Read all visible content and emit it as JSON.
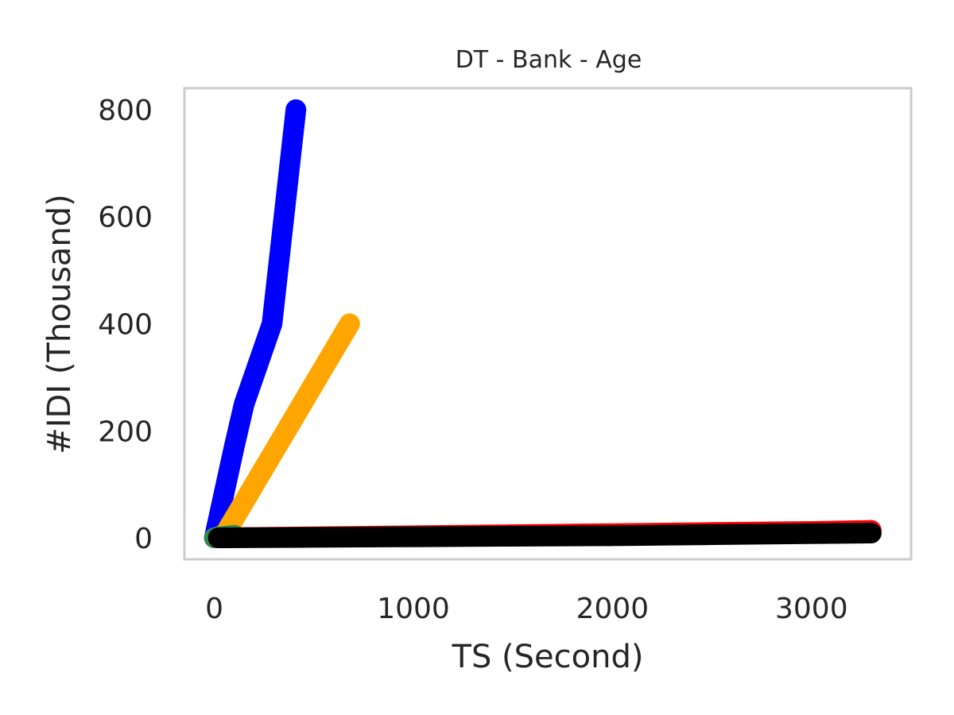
{
  "chart_data": {
    "type": "line",
    "title": "DT - Bank - Age",
    "xlabel": "TS (Second)",
    "ylabel": "#IDI (Thousand)",
    "xlim": [
      -150,
      3500
    ],
    "ylim": [
      -40,
      840
    ],
    "xticks": [
      0,
      1000,
      2000,
      3000
    ],
    "yticks": [
      0,
      200,
      400,
      600,
      800
    ],
    "grid": false,
    "series": [
      {
        "color": "#ff0000",
        "x": [
          0,
          500,
          1000,
          1500,
          2000,
          2500,
          3000,
          3300
        ],
        "y": [
          0,
          2,
          4,
          6,
          8,
          10,
          12,
          14
        ]
      },
      {
        "color": "#0000ff",
        "x": [
          0,
          100,
          150,
          290,
          350,
          410
        ],
        "y": [
          0,
          170,
          250,
          400,
          600,
          800
        ]
      },
      {
        "color": "#ffa500",
        "x": [
          0,
          50,
          680
        ],
        "y": [
          0,
          5,
          400
        ]
      },
      {
        "color": "#2e8b57",
        "x": [
          0,
          50,
          100
        ],
        "y": [
          0,
          3,
          5
        ]
      },
      {
        "color": "#000000",
        "x": [
          20,
          500,
          1000,
          1500,
          2000,
          2500,
          3000,
          3300
        ],
        "y": [
          0,
          1,
          2,
          3,
          4,
          6,
          8,
          9
        ]
      }
    ]
  }
}
